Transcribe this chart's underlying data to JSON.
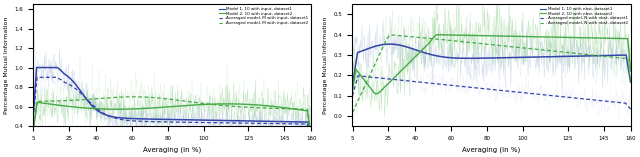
{
  "fig_width": 6.4,
  "fig_height": 1.57,
  "dpi": 100,
  "background_color": "#ffffff",
  "subplot1": {
    "ylabel": "Percentage Mutual Information",
    "xlabel": "Averaging (in %)",
    "xlim": [
      5,
      160
    ],
    "ylim": [
      0.4,
      1.65
    ],
    "yticks": [
      0.4,
      0.6,
      0.8,
      1.0,
      1.2,
      1.4,
      1.6
    ],
    "xtick_vals": [
      5,
      25,
      40,
      60,
      80,
      100,
      125,
      145,
      160
    ],
    "xtick_labels": [
      "5",
      "25",
      "40",
      "60",
      "80",
      "100",
      "125",
      "145",
      "160"
    ],
    "legend": [
      "Model 1, 10 with input, dataset1",
      "Model 2, 10 with input, dataset2",
      "Averaged model, M with input, dataset1",
      "Averaged model, M with input, dataset2"
    ]
  },
  "subplot2": {
    "ylabel": "Percentage Mutual Information",
    "xlabel": "Averaging (in %)",
    "xlim": [
      5,
      160
    ],
    "ylim": [
      -0.05,
      0.55
    ],
    "yticks": [
      0.0,
      0.1,
      0.2,
      0.3,
      0.4,
      0.5
    ],
    "xtick_vals": [
      5,
      25,
      40,
      60,
      80,
      100,
      125,
      145,
      160
    ],
    "xtick_labels": [
      "5",
      "25",
      "40",
      "60",
      "80",
      "100",
      "125",
      "145",
      "160"
    ],
    "legend": [
      "Model 1, 10 with nbst, dataset1",
      "Model 2, 10 with nbst, dataset2",
      "Averaged model, N with nbst, dataset1",
      "Averaged model, N with nbst, dataset2"
    ]
  }
}
